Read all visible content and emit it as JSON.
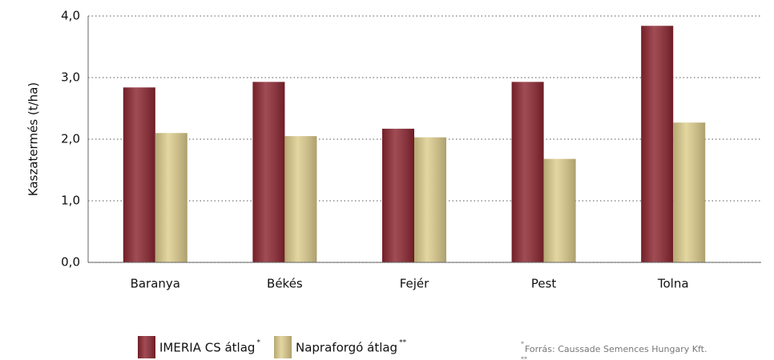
{
  "chart_data": {
    "type": "bar",
    "y_label": "Kaszatermés (t/ha)",
    "categories": [
      "Baranya",
      "Békés",
      "Fejér",
      "Pest",
      "Tolna"
    ],
    "series": [
      {
        "name": "IMERIA CS átlag",
        "note": "*",
        "color": "#8c2530",
        "values": [
          2.84,
          2.93,
          2.17,
          2.93,
          3.84
        ]
      },
      {
        "name": "Napraforgó átlag",
        "note": "**",
        "color": "#ddcd8c",
        "values": [
          2.1,
          2.05,
          2.03,
          1.68,
          2.27
        ]
      }
    ],
    "ylim": [
      0,
      4
    ],
    "yticks": [
      {
        "value": 0,
        "label": "0,0"
      },
      {
        "value": 1,
        "label": "1,0"
      },
      {
        "value": 2,
        "label": "2,0"
      },
      {
        "value": 3,
        "label": "3,0"
      },
      {
        "value": 4,
        "label": "4,0"
      }
    ],
    "grid": true,
    "footnotes": [
      {
        "mark": "*",
        "text": "Forrás:  Caussade Semences Hungary Kft."
      },
      {
        "mark": "**"
      }
    ]
  }
}
